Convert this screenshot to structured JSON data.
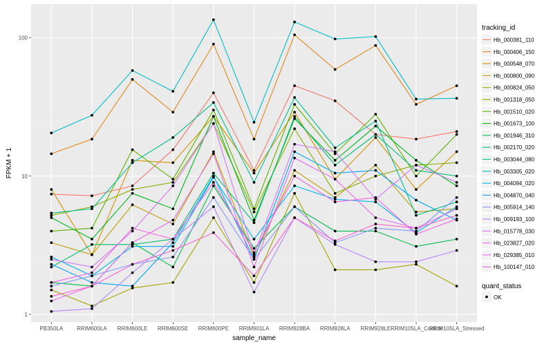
{
  "chart_data": {
    "type": "line",
    "xlabel": "sample_name",
    "ylabel": "FPKM + 1",
    "y_scale": "log10",
    "ylim": [
      0.88,
      175
    ],
    "yticks": [
      {
        "value": 1,
        "label": "1"
      },
      {
        "value": 10,
        "label": "10"
      },
      {
        "value": 100,
        "label": "100"
      }
    ],
    "categories": [
      "PB350LA",
      "RRIM600LA",
      "RRIM600LE",
      "RRIM600SE",
      "RRIM600PE",
      "RRIM901LA",
      "RRIM928BA",
      "RRIM928LA",
      "RRIM928LE",
      "RRIM105LA_Control",
      "RRIM105LA_Stressed"
    ],
    "grid": true,
    "panel_background": "#ebebeb",
    "legend_position": "right",
    "legend": {
      "title": "tracking_id",
      "quant_title": "quant_status",
      "quant_label": "OK"
    },
    "series": [
      {
        "name": "Hb_000381_110",
        "color": "#F8766D",
        "values": [
          7.4,
          7.2,
          8.5,
          15.5,
          40,
          11,
          45,
          35,
          20,
          18.5,
          21
        ]
      },
      {
        "name": "Hb_000406_150",
        "color": "#E7861B",
        "values": [
          14.5,
          18.5,
          50,
          29,
          90,
          18.5,
          105,
          59,
          88,
          33,
          45
        ]
      },
      {
        "name": "Hb_000548_070",
        "color": "#D39200",
        "values": [
          8,
          2.7,
          13,
          12.5,
          27,
          10.5,
          29,
          9.5,
          19,
          8,
          15
        ]
      },
      {
        "name": "Hb_000800_090",
        "color": "#BC9D00",
        "values": [
          3.3,
          2.7,
          6.2,
          4.5,
          15,
          2.6,
          11,
          7,
          12,
          5.5,
          5.8
        ]
      },
      {
        "name": "Hb_000824_050",
        "color": "#A3A500",
        "values": [
          1.5,
          1.15,
          1.55,
          1.7,
          5,
          1.7,
          7.5,
          2.1,
          2.1,
          2.3,
          1.6
        ]
      },
      {
        "name": "Hb_001318_050",
        "color": "#85AD00",
        "values": [
          5.2,
          6,
          8,
          9,
          24,
          5.5,
          22,
          7.5,
          10,
          12,
          12.5
        ]
      },
      {
        "name": "Hb_001510_020",
        "color": "#5BB300",
        "values": [
          4,
          4.2,
          15.5,
          9.5,
          30,
          5.8,
          33,
          14.5,
          28,
          10,
          20
        ]
      },
      {
        "name": "Hb_001673_100",
        "color": "#00B81F",
        "values": [
          5,
          3.5,
          7.5,
          5.8,
          27,
          4.8,
          26,
          13,
          23,
          13,
          8.5
        ]
      },
      {
        "name": "Hb_001946_310",
        "color": "#00BB4E",
        "values": [
          1.7,
          1.6,
          3.3,
          2.2,
          8.5,
          3,
          6,
          4,
          4,
          3.1,
          3.5
        ]
      },
      {
        "name": "Hb_002170_020",
        "color": "#00BE70",
        "values": [
          2.2,
          3.2,
          3.2,
          3.5,
          10.5,
          4.6,
          27,
          12,
          20,
          11,
          10
        ]
      },
      {
        "name": "Hb_003044_080",
        "color": "#00C08E",
        "values": [
          5.4,
          5.8,
          12.5,
          19,
          34,
          9,
          37,
          16,
          25,
          5.2,
          6.5
        ]
      },
      {
        "name": "Hb_003305_020",
        "color": "#00BFC4",
        "values": [
          20.5,
          27.5,
          58,
          41,
          135,
          24.5,
          130,
          98,
          102,
          36,
          36.5
        ]
      },
      {
        "name": "Hb_004094_020",
        "color": "#00B4EF",
        "values": [
          2.6,
          1.9,
          3.1,
          3.1,
          9.8,
          3.5,
          8.5,
          6.8,
          6.5,
          3.9,
          6
        ]
      },
      {
        "name": "Hb_004870_040",
        "color": "#00A5FF",
        "values": [
          2.3,
          1.7,
          1.6,
          3.3,
          10,
          2.5,
          15,
          10.5,
          11,
          6.7,
          4.8
        ]
      },
      {
        "name": "Hb_005914_140",
        "color": "#8796FF",
        "values": [
          1.6,
          1.9,
          2.3,
          2.6,
          7,
          2.5,
          6,
          3.3,
          4.2,
          4,
          7
        ]
      },
      {
        "name": "Hb_009193_100",
        "color": "#B385FF",
        "values": [
          1.05,
          1.1,
          2,
          3.5,
          6,
          1.45,
          5,
          3.2,
          2.4,
          2.4,
          2.9
        ]
      },
      {
        "name": "Hb_015778_030",
        "color": "#D177FF",
        "values": [
          2.5,
          2.2,
          4,
          8.5,
          24,
          2.7,
          17,
          15,
          6.8,
          12,
          9
        ]
      },
      {
        "name": "Hb_023827_020",
        "color": "#E76BF3",
        "values": [
          1.25,
          1.6,
          3.3,
          4.8,
          14.5,
          2.2,
          13.5,
          9.5,
          5,
          4.2,
          5.8
        ]
      },
      {
        "name": "Hb_029385_010",
        "color": "#F564E3",
        "values": [
          1.7,
          2,
          4.2,
          3.5,
          9,
          2.8,
          10,
          6.5,
          7,
          3.8,
          4.9
        ]
      },
      {
        "name": "Hb_100147_010",
        "color": "#FD61D1",
        "values": [
          1.35,
          1.6,
          2.3,
          2.9,
          3.9,
          1.9,
          5,
          3.4,
          4.5,
          4.2,
          5.2
        ]
      }
    ]
  }
}
